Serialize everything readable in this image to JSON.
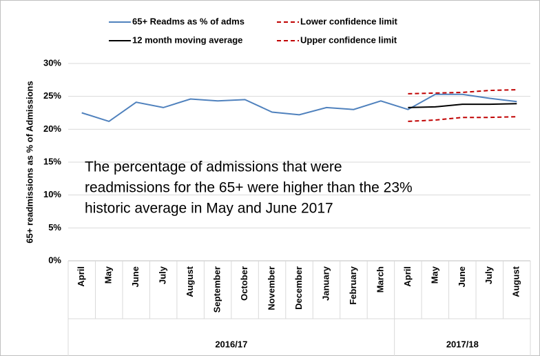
{
  "chart_data": {
    "type": "line",
    "y_label": "65+ readmissions as % of Admissions",
    "categories": [
      "April",
      "May",
      "June",
      "July",
      "August",
      "September",
      "October",
      "November",
      "December",
      "January",
      "February",
      "March",
      "April",
      "May",
      "June",
      "July",
      "August"
    ],
    "category_groups": [
      {
        "label": "2016/17",
        "count": 12
      },
      {
        "label": "2017/18",
        "count": 5
      }
    ],
    "series": [
      {
        "name": "65+ Readms as % of adms",
        "color": "#4f81bd",
        "dash": false,
        "values": [
          22.5,
          21.2,
          24.1,
          23.3,
          24.6,
          24.3,
          24.5,
          22.6,
          22.2,
          23.3,
          23.0,
          24.3,
          23.0,
          25.3,
          25.3,
          24.7,
          24.2
        ]
      },
      {
        "name": "12 month moving average",
        "color": "#000000",
        "dash": false,
        "values": [
          null,
          null,
          null,
          null,
          null,
          null,
          null,
          null,
          null,
          null,
          null,
          null,
          23.3,
          23.4,
          23.8,
          23.8,
          23.9
        ]
      },
      {
        "name": "Lower confidence limit",
        "color": "#c00000",
        "dash": true,
        "values": [
          null,
          null,
          null,
          null,
          null,
          null,
          null,
          null,
          null,
          null,
          null,
          null,
          21.2,
          21.4,
          21.8,
          21.8,
          21.9
        ]
      },
      {
        "name": "Upper confidence limit",
        "color": "#c00000",
        "dash": true,
        "values": [
          null,
          null,
          null,
          null,
          null,
          null,
          null,
          null,
          null,
          null,
          null,
          null,
          25.4,
          25.5,
          25.6,
          25.9,
          26.0
        ]
      }
    ],
    "ylim": [
      0,
      30
    ],
    "yticks": [
      {
        "value": 0,
        "label": "0%"
      },
      {
        "value": 5,
        "label": "5%"
      },
      {
        "value": 10,
        "label": "10%"
      },
      {
        "value": 15,
        "label": "15%"
      },
      {
        "value": 20,
        "label": "20%"
      },
      {
        "value": 25,
        "label": "25%"
      },
      {
        "value": 30,
        "label": "30%"
      }
    ],
    "grid": true,
    "annotation": [
      "The percentage of admissions that were",
      "readmissions for the 65+ were higher than the 23%",
      "historic average in May and June 2017"
    ]
  }
}
